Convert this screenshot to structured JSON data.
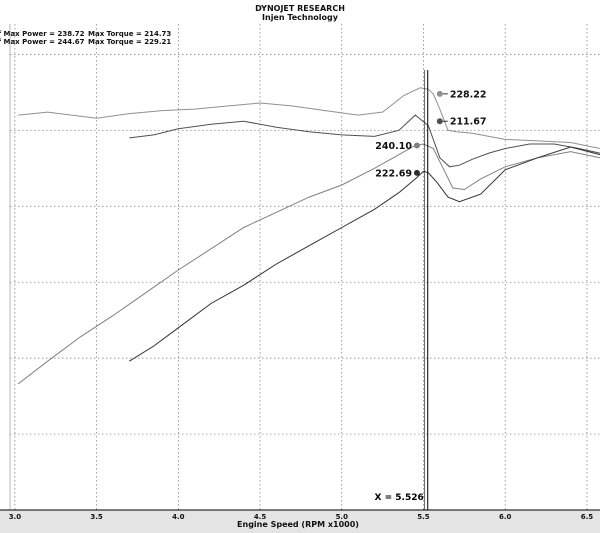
{
  "header": {
    "title": "DYNOJET RESEARCH",
    "subtitle": "Injen Technology"
  },
  "stats": [
    {
      "max_power": "f Max Power = 238.72",
      "max_torque": "Max Torque = 214.73"
    },
    {
      "max_power": "f Max Power = 244.67",
      "max_torque": "Max Torque = 229.21"
    }
  ],
  "chart_data": {
    "type": "line",
    "title": "DYNOJET RESEARCH",
    "subtitle": "Injen Technology",
    "xlabel": "Engine Speed (RPM x1000)",
    "ylabel": "",
    "xlim": [
      2.97,
      6.58
    ],
    "ylim": [
      0,
      320
    ],
    "x_ticks": [
      "3.0",
      "3.5",
      "4.0",
      "4.5",
      "5.0",
      "5.5",
      "6.0",
      "6.5"
    ],
    "grid": true,
    "cursor": {
      "x": 5.526,
      "label": "X = 5.526"
    },
    "series": [
      {
        "color": "#909090",
        "points": [
          [
            3.02,
            260
          ],
          [
            3.2,
            262
          ],
          [
            3.5,
            258
          ],
          [
            3.7,
            261
          ],
          [
            3.9,
            263
          ],
          [
            4.1,
            264
          ],
          [
            4.3,
            266
          ],
          [
            4.5,
            268
          ],
          [
            4.7,
            266
          ],
          [
            4.9,
            263
          ],
          [
            5.1,
            260
          ],
          [
            5.25,
            262
          ],
          [
            5.38,
            273
          ],
          [
            5.48,
            278
          ],
          [
            5.53,
            277
          ],
          [
            5.56,
            274
          ],
          [
            5.6,
            264
          ],
          [
            5.65,
            250
          ],
          [
            5.7,
            249
          ],
          [
            5.8,
            248
          ],
          [
            5.9,
            246
          ],
          [
            6.0,
            244
          ],
          [
            6.2,
            243
          ],
          [
            6.4,
            242
          ],
          [
            6.58,
            238
          ]
        ]
      },
      {
        "color": "#505050",
        "points": [
          [
            3.7,
            245
          ],
          [
            3.85,
            247
          ],
          [
            4.0,
            251
          ],
          [
            4.2,
            254
          ],
          [
            4.4,
            256
          ],
          [
            4.6,
            252
          ],
          [
            4.8,
            249
          ],
          [
            5.0,
            247
          ],
          [
            5.2,
            246
          ],
          [
            5.35,
            250
          ],
          [
            5.45,
            260
          ],
          [
            5.53,
            253
          ],
          [
            5.6,
            232
          ],
          [
            5.66,
            226
          ],
          [
            5.72,
            227
          ],
          [
            5.8,
            231
          ],
          [
            5.9,
            235
          ],
          [
            6.0,
            238
          ],
          [
            6.15,
            241
          ],
          [
            6.3,
            241
          ],
          [
            6.45,
            238
          ],
          [
            6.58,
            235
          ]
        ]
      },
      {
        "color": "#808080",
        "points": [
          [
            3.02,
            83
          ],
          [
            3.2,
            98
          ],
          [
            3.4,
            114
          ],
          [
            3.6,
            128
          ],
          [
            3.8,
            143
          ],
          [
            4.0,
            158
          ],
          [
            4.2,
            172
          ],
          [
            4.4,
            186
          ],
          [
            4.6,
            196
          ],
          [
            4.8,
            206
          ],
          [
            5.0,
            214
          ],
          [
            5.2,
            225
          ],
          [
            5.35,
            234
          ],
          [
            5.45,
            240
          ],
          [
            5.5,
            241
          ],
          [
            5.56,
            238
          ],
          [
            5.62,
            225
          ],
          [
            5.68,
            212
          ],
          [
            5.75,
            211
          ],
          [
            5.85,
            218
          ],
          [
            6.0,
            226
          ],
          [
            6.2,
            232
          ],
          [
            6.4,
            236
          ],
          [
            6.58,
            232
          ]
        ]
      },
      {
        "color": "#303030",
        "points": [
          [
            3.7,
            98
          ],
          [
            3.85,
            108
          ],
          [
            4.0,
            120
          ],
          [
            4.2,
            136
          ],
          [
            4.4,
            148
          ],
          [
            4.6,
            162
          ],
          [
            4.8,
            174
          ],
          [
            5.0,
            186
          ],
          [
            5.2,
            198
          ],
          [
            5.35,
            209
          ],
          [
            5.45,
            218
          ],
          [
            5.5,
            223
          ],
          [
            5.53,
            222
          ],
          [
            5.58,
            216
          ],
          [
            5.65,
            206
          ],
          [
            5.72,
            203
          ],
          [
            5.85,
            208
          ],
          [
            6.0,
            224
          ],
          [
            6.2,
            232
          ],
          [
            6.4,
            239
          ],
          [
            6.58,
            234
          ]
        ]
      }
    ],
    "markers": [
      {
        "x": 5.6,
        "y": 274,
        "label": "228.22",
        "color": "#909090",
        "label_side": "right"
      },
      {
        "x": 5.6,
        "y": 256,
        "label": "211.67",
        "color": "#505050",
        "label_side": "right"
      },
      {
        "x": 5.46,
        "y": 240,
        "label": "240.10",
        "color": "#808080",
        "label_side": "left"
      },
      {
        "x": 5.46,
        "y": 222,
        "label": "222.69",
        "color": "#303030",
        "label_side": "left"
      }
    ]
  }
}
